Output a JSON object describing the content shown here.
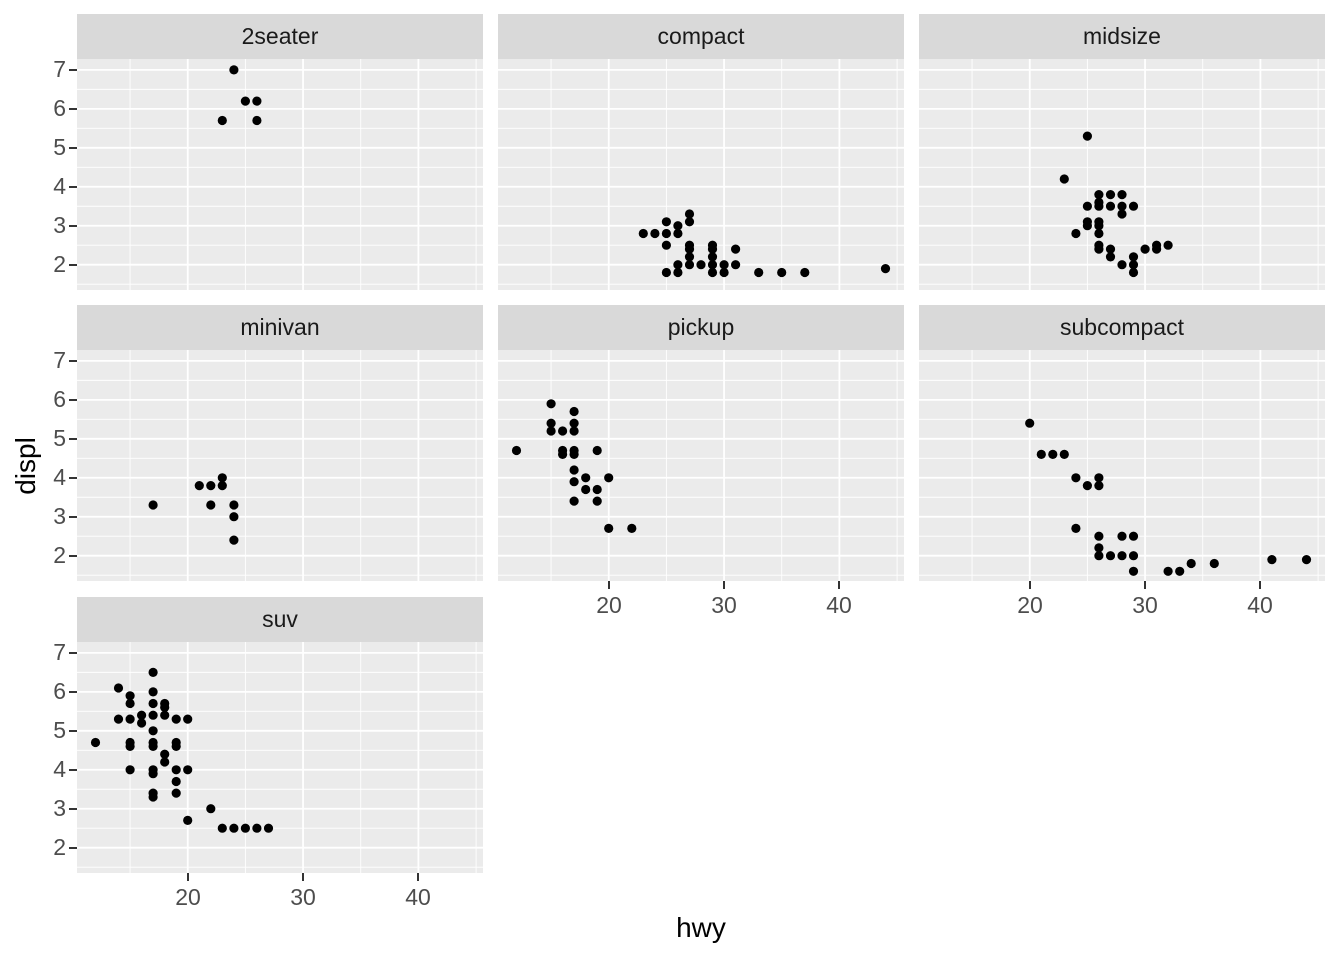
{
  "figure": {
    "background": "#FFFFFF",
    "colors": {
      "panel_background": "#EBEBEB",
      "strip_background": "#D9D9D9",
      "strip_text": "#1A1A1A",
      "gridline": "#FFFFFF",
      "point": "#000000",
      "tick_label": "#4D4D4D",
      "tick_mark": "#333333",
      "axis_title": "#000000"
    }
  },
  "chart_data": {
    "type": "scatter",
    "title": "",
    "xlabel": "hwy",
    "ylabel": "displ",
    "legend": "none",
    "grid": "on",
    "facet_layout": {
      "columns": 3,
      "rows": 3
    },
    "x_range": [
      10.4,
      45.6
    ],
    "y_range": [
      1.35,
      7.28
    ],
    "x_ticks_major": [
      20,
      30,
      40
    ],
    "x_ticks_minor": [
      15,
      25,
      35,
      45
    ],
    "y_ticks_major": [
      2,
      3,
      4,
      5,
      6,
      7
    ],
    "y_ticks_minor": [
      1.5,
      2.5,
      3.5,
      4.5,
      5.5,
      6.5
    ],
    "facets": [
      {
        "label": "2seater",
        "points": [
          [
            24,
            7.0
          ],
          [
            25,
            6.2
          ],
          [
            26,
            6.2
          ],
          [
            23,
            5.7
          ],
          [
            26,
            5.7
          ]
        ]
      },
      {
        "label": "compact",
        "points": [
          [
            25,
            1.8
          ],
          [
            26,
            1.8
          ],
          [
            29,
            1.8
          ],
          [
            30,
            1.8
          ],
          [
            33,
            1.8
          ],
          [
            35,
            1.8
          ],
          [
            37,
            1.8
          ],
          [
            44,
            1.9
          ],
          [
            26,
            2.0
          ],
          [
            27,
            2.0
          ],
          [
            28,
            2.0
          ],
          [
            29,
            2.0
          ],
          [
            30,
            2.0
          ],
          [
            31,
            2.0
          ],
          [
            27,
            2.2
          ],
          [
            29,
            2.2
          ],
          [
            27,
            2.4
          ],
          [
            29,
            2.4
          ],
          [
            31,
            2.4
          ],
          [
            25,
            2.5
          ],
          [
            27,
            2.5
          ],
          [
            29,
            2.5
          ],
          [
            23,
            2.8
          ],
          [
            24,
            2.8
          ],
          [
            25,
            2.8
          ],
          [
            26,
            2.8
          ],
          [
            26,
            3.0
          ],
          [
            25,
            3.1
          ],
          [
            27,
            3.1
          ],
          [
            27,
            3.3
          ]
        ]
      },
      {
        "label": "midsize",
        "points": [
          [
            29,
            1.8
          ],
          [
            28,
            2.0
          ],
          [
            29,
            2.0
          ],
          [
            27,
            2.2
          ],
          [
            29,
            2.2
          ],
          [
            26,
            2.4
          ],
          [
            27,
            2.4
          ],
          [
            30,
            2.4
          ],
          [
            31,
            2.4
          ],
          [
            26,
            2.5
          ],
          [
            31,
            2.5
          ],
          [
            32,
            2.5
          ],
          [
            24,
            2.8
          ],
          [
            26,
            2.8
          ],
          [
            25,
            3.0
          ],
          [
            26,
            3.0
          ],
          [
            25,
            3.1
          ],
          [
            26,
            3.1
          ],
          [
            28,
            3.3
          ],
          [
            25,
            3.5
          ],
          [
            26,
            3.5
          ],
          [
            27,
            3.5
          ],
          [
            28,
            3.5
          ],
          [
            29,
            3.5
          ],
          [
            26,
            3.6
          ],
          [
            26,
            3.8
          ],
          [
            27,
            3.8
          ],
          [
            28,
            3.8
          ],
          [
            23,
            4.2
          ],
          [
            25,
            5.3
          ]
        ]
      },
      {
        "label": "minivan",
        "points": [
          [
            24,
            2.4
          ],
          [
            24,
            3.0
          ],
          [
            17,
            3.3
          ],
          [
            22,
            3.3
          ],
          [
            24,
            3.3
          ],
          [
            21,
            3.8
          ],
          [
            22,
            3.8
          ],
          [
            23,
            3.8
          ],
          [
            23,
            4.0
          ]
        ]
      },
      {
        "label": "pickup",
        "points": [
          [
            20,
            2.7
          ],
          [
            22,
            2.7
          ],
          [
            17,
            3.4
          ],
          [
            19,
            3.4
          ],
          [
            18,
            3.7
          ],
          [
            19,
            3.7
          ],
          [
            17,
            3.9
          ],
          [
            18,
            4.0
          ],
          [
            20,
            4.0
          ],
          [
            17,
            4.2
          ],
          [
            16,
            4.6
          ],
          [
            17,
            4.6
          ],
          [
            12,
            4.7
          ],
          [
            16,
            4.7
          ],
          [
            17,
            4.7
          ],
          [
            19,
            4.7
          ],
          [
            15,
            5.2
          ],
          [
            16,
            5.2
          ],
          [
            17,
            5.2
          ],
          [
            15,
            5.4
          ],
          [
            17,
            5.4
          ],
          [
            17,
            5.7
          ],
          [
            15,
            5.9
          ]
        ]
      },
      {
        "label": "subcompact",
        "points": [
          [
            29,
            1.6
          ],
          [
            32,
            1.6
          ],
          [
            33,
            1.6
          ],
          [
            34,
            1.8
          ],
          [
            36,
            1.8
          ],
          [
            41,
            1.9
          ],
          [
            44,
            1.9
          ],
          [
            26,
            2.0
          ],
          [
            27,
            2.0
          ],
          [
            28,
            2.0
          ],
          [
            29,
            2.0
          ],
          [
            26,
            2.2
          ],
          [
            26,
            2.5
          ],
          [
            28,
            2.5
          ],
          [
            29,
            2.5
          ],
          [
            24,
            2.7
          ],
          [
            25,
            3.8
          ],
          [
            26,
            3.8
          ],
          [
            24,
            4.0
          ],
          [
            26,
            4.0
          ],
          [
            21,
            4.6
          ],
          [
            22,
            4.6
          ],
          [
            23,
            4.6
          ],
          [
            20,
            5.4
          ]
        ]
      },
      {
        "label": "suv",
        "points": [
          [
            23,
            2.5
          ],
          [
            24,
            2.5
          ],
          [
            25,
            2.5
          ],
          [
            26,
            2.5
          ],
          [
            27,
            2.5
          ],
          [
            20,
            2.7
          ],
          [
            22,
            3.0
          ],
          [
            17,
            3.3
          ],
          [
            17,
            3.4
          ],
          [
            19,
            3.4
          ],
          [
            19,
            3.7
          ],
          [
            17,
            3.9
          ],
          [
            15,
            4.0
          ],
          [
            17,
            4.0
          ],
          [
            19,
            4.0
          ],
          [
            20,
            4.0
          ],
          [
            18,
            4.2
          ],
          [
            18,
            4.4
          ],
          [
            15,
            4.6
          ],
          [
            17,
            4.6
          ],
          [
            19,
            4.6
          ],
          [
            12,
            4.7
          ],
          [
            15,
            4.7
          ],
          [
            17,
            4.7
          ],
          [
            19,
            4.7
          ],
          [
            17,
            5.0
          ],
          [
            16,
            5.2
          ],
          [
            14,
            5.3
          ],
          [
            15,
            5.3
          ],
          [
            19,
            5.3
          ],
          [
            20,
            5.3
          ],
          [
            16,
            5.4
          ],
          [
            17,
            5.4
          ],
          [
            18,
            5.4
          ],
          [
            18,
            5.6
          ],
          [
            15,
            5.7
          ],
          [
            17,
            5.7
          ],
          [
            18,
            5.7
          ],
          [
            15,
            5.9
          ],
          [
            17,
            6.0
          ],
          [
            14,
            6.1
          ],
          [
            17,
            6.5
          ]
        ]
      }
    ]
  }
}
